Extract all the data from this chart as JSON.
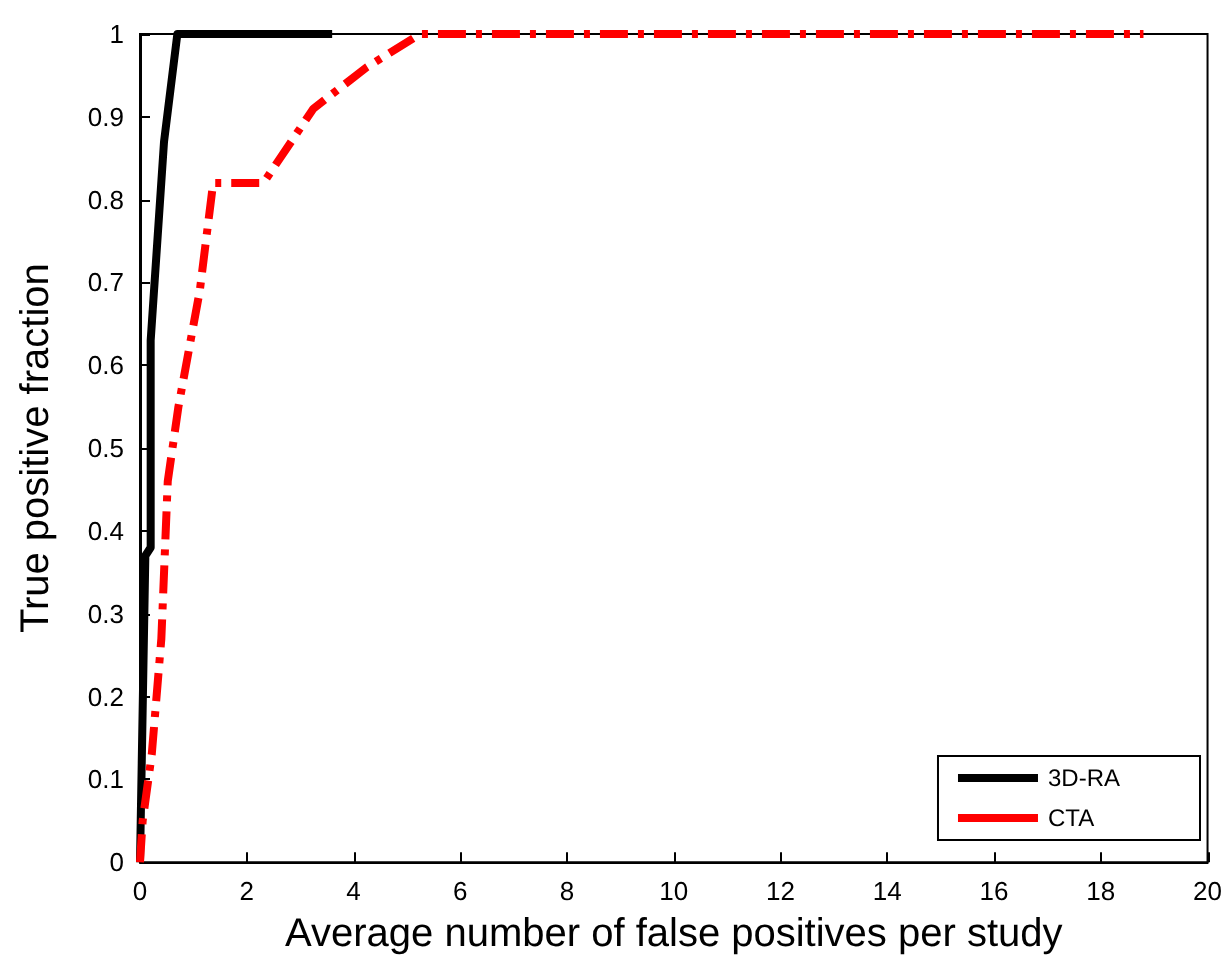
{
  "chart_data": {
    "type": "line",
    "xlabel": "Average number of false positives per study",
    "ylabel": "True positive fraction",
    "xlim": [
      0,
      20
    ],
    "xticks": [
      0,
      2,
      4,
      6,
      8,
      10,
      12,
      14,
      16,
      18,
      20
    ],
    "ylim": [
      0,
      1
    ],
    "yticks": [
      0,
      0.1,
      0.2,
      0.3,
      0.4,
      0.5,
      0.6,
      0.7,
      0.8,
      0.9,
      1
    ],
    "grid": false,
    "legend": "bottom right",
    "marker": "none",
    "series": [
      {
        "name": "3D-RA",
        "color": "#000000",
        "line_style": "solid",
        "x": [
          0,
          0.1,
          0.2,
          0.2,
          0.45,
          0.7,
          3.6
        ],
        "values": [
          0,
          0.37,
          0.38,
          0.63,
          0.87,
          1,
          1
        ]
      },
      {
        "name": "CTA",
        "color": "#ff0000",
        "line_style": "dashed",
        "x": [
          0,
          0.05,
          0.22,
          0.31,
          0.4,
          0.52,
          0.72,
          1.12,
          1.37,
          2.31,
          3.25,
          4.25,
          5.25,
          18.8
        ],
        "values": [
          0,
          0.05,
          0.13,
          0.2,
          0.27,
          0.46,
          0.55,
          0.69,
          0.82,
          0.82,
          0.91,
          0.96,
          1,
          1
        ]
      }
    ]
  }
}
